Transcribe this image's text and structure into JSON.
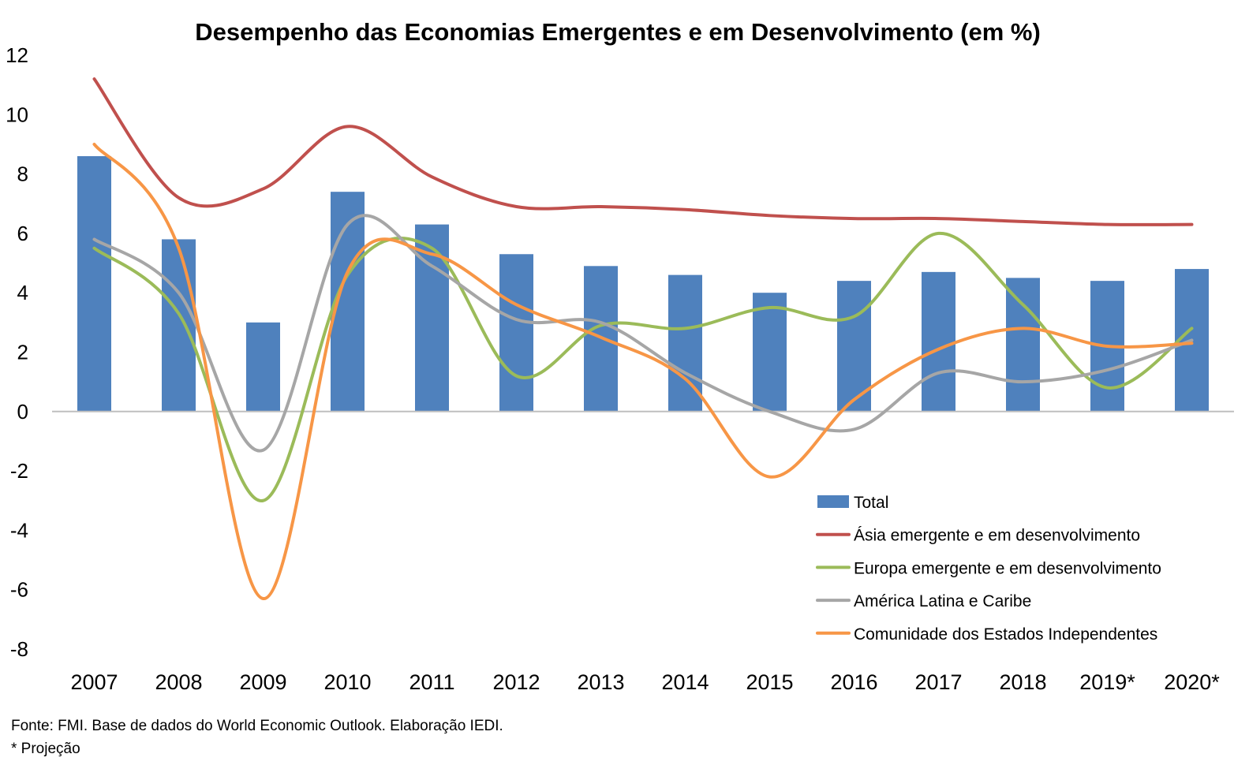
{
  "chart_data": {
    "type": "bar",
    "title": "Desempenho das Economias Emergentes e em Desenvolvimento (em %)",
    "categories": [
      "2007",
      "2008",
      "2009",
      "2010",
      "2011",
      "2012",
      "2013",
      "2014",
      "2015",
      "2016",
      "2017",
      "2018",
      "2019*",
      "2020*"
    ],
    "ylim": [
      -8,
      12
    ],
    "yticks": [
      "12",
      "10",
      "8",
      "6",
      "4",
      "2",
      "0",
      "-2",
      "-4",
      "-6",
      "-8"
    ],
    "ytick_values": [
      12,
      10,
      8,
      6,
      4,
      2,
      0,
      -2,
      -4,
      -6,
      -8
    ],
    "grid": false,
    "legend_position": "bottom-right",
    "series": [
      {
        "name": "Total",
        "kind": "bar",
        "color": "#4F81BD",
        "values": [
          8.6,
          5.8,
          3.0,
          7.4,
          6.3,
          5.3,
          4.9,
          4.6,
          4.0,
          4.4,
          4.7,
          4.5,
          4.4,
          4.8
        ]
      },
      {
        "name": "Ásia emergente e em desenvolvimento",
        "kind": "line",
        "color": "#C0504D",
        "values": [
          11.2,
          7.2,
          7.5,
          9.6,
          7.9,
          6.9,
          6.9,
          6.8,
          6.6,
          6.5,
          6.5,
          6.4,
          6.3,
          6.3
        ]
      },
      {
        "name": "Europa emergente e em desenvolvimento",
        "kind": "line",
        "color": "#9BBB59",
        "values": [
          5.5,
          3.3,
          -3.0,
          4.6,
          5.5,
          1.2,
          2.9,
          2.8,
          3.5,
          3.2,
          6.0,
          3.6,
          0.8,
          2.8
        ]
      },
      {
        "name": "América Latina e Caribe",
        "kind": "line",
        "color": "#A6A6A6",
        "values": [
          5.8,
          4.0,
          -1.3,
          6.3,
          4.9,
          3.1,
          3.0,
          1.3,
          0.0,
          -0.6,
          1.3,
          1.0,
          1.4,
          2.4
        ]
      },
      {
        "name": "Comunidade dos Estados Independentes",
        "kind": "line",
        "color": "#F79646",
        "values": [
          9.0,
          5.5,
          -6.3,
          4.7,
          5.3,
          3.6,
          2.5,
          1.1,
          -2.2,
          0.4,
          2.1,
          2.8,
          2.2,
          2.3
        ]
      }
    ],
    "footnotes": [
      "Fonte: FMI. Base de dados do World Economic Outlook. Elaboração IEDI.",
      "* Projeção"
    ]
  }
}
